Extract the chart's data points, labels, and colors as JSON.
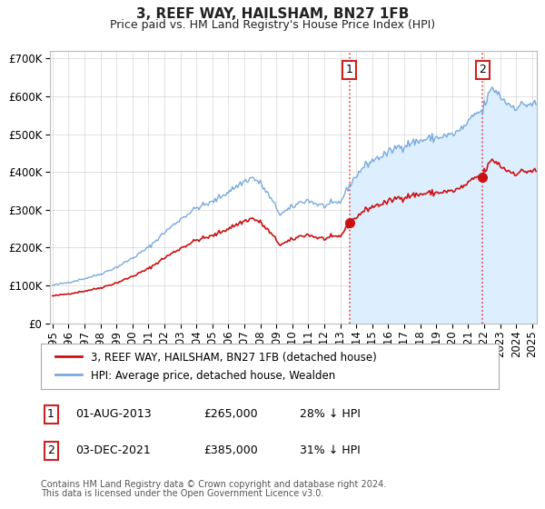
{
  "title": "3, REEF WAY, HAILSHAM, BN27 1FB",
  "subtitle": "Price paid vs. HM Land Registry's House Price Index (HPI)",
  "sale1_date_label": "01-AUG-2013",
  "sale1_price": 265000,
  "sale1_price_label": "£265,000",
  "sale1_pct": "28% ↓ HPI",
  "sale1_t": 2013.583,
  "sale2_date_label": "03-DEC-2021",
  "sale2_price": 385000,
  "sale2_price_label": "£385,000",
  "sale2_pct": "31% ↓ HPI",
  "sale2_t": 2021.917,
  "hpi_color": "#7aaadd",
  "hpi_fill_color": "#ddeeff",
  "price_color": "#cc1111",
  "vline_color": "#dd4444",
  "background_color": "#ffffff",
  "plot_bg_color": "#ffffff",
  "grid_color": "#cccccc",
  "legend_label_price": "3, REEF WAY, HAILSHAM, BN27 1FB (detached house)",
  "legend_label_hpi": "HPI: Average price, detached house, Wealden",
  "footer1": "Contains HM Land Registry data © Crown copyright and database right 2024.",
  "footer2": "This data is licensed under the Open Government Licence v3.0.",
  "ylim": [
    0,
    720000
  ],
  "yticks": [
    0,
    100000,
    200000,
    300000,
    400000,
    500000,
    600000,
    700000
  ],
  "xmin": 1995.0,
  "xmax": 2025.3
}
